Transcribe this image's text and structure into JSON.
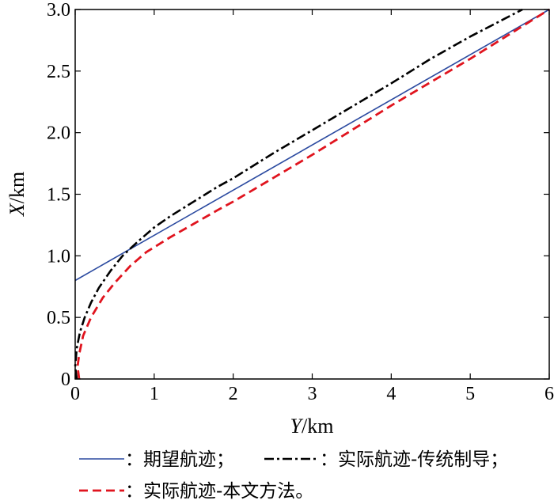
{
  "chart_data": {
    "type": "line",
    "xlabel": {
      "var": "Y",
      "unit": "/km"
    },
    "ylabel": {
      "var": "X",
      "unit": "/km"
    },
    "xlim": [
      0,
      6
    ],
    "ylim": [
      0,
      3.0
    ],
    "x_ticks": [
      {
        "value": 0,
        "label": "0"
      },
      {
        "value": 1,
        "label": "1"
      },
      {
        "value": 2,
        "label": "2"
      },
      {
        "value": 3,
        "label": "3"
      },
      {
        "value": 4,
        "label": "4"
      },
      {
        "value": 5,
        "label": "5"
      },
      {
        "value": 6,
        "label": "6"
      }
    ],
    "y_ticks": [
      {
        "value": 0,
        "label": "0"
      },
      {
        "value": 0.5,
        "label": "0.5"
      },
      {
        "value": 1.0,
        "label": "1.0"
      },
      {
        "value": 1.5,
        "label": "1.5"
      },
      {
        "value": 2.0,
        "label": "2.0"
      },
      {
        "value": 2.5,
        "label": "2.5"
      },
      {
        "value": 3.0,
        "label": "3.0"
      }
    ],
    "grid": false,
    "legend_position": "bottom",
    "series": [
      {
        "name": "期望航迹",
        "legend_text": "：期望航迹；",
        "color": "#2b4aa0",
        "style": "solid",
        "x": [
          0,
          6
        ],
        "y": [
          0.8,
          3.0
        ]
      },
      {
        "name": "实际航迹-传统制导",
        "legend_text": "：实际航迹-传统制导；",
        "color": "#000000",
        "style": "dashdot",
        "x": [
          0.02,
          0.0,
          0.02,
          0.06,
          0.12,
          0.2,
          0.3,
          0.45,
          0.6,
          0.8,
          1.0,
          1.2,
          1.5,
          1.8,
          2.0,
          2.5,
          3.0,
          3.5,
          4.0,
          4.5,
          5.0,
          5.66
        ],
        "y": [
          0.0,
          0.1,
          0.25,
          0.38,
          0.5,
          0.62,
          0.74,
          0.88,
          1.0,
          1.12,
          1.23,
          1.32,
          1.44,
          1.56,
          1.63,
          1.83,
          2.02,
          2.21,
          2.4,
          2.6,
          2.78,
          3.0
        ]
      },
      {
        "name": "实际航迹-本文方法",
        "legend_text": "：实际航迹-本文方法。",
        "color": "#e0141e",
        "style": "dashed",
        "x": [
          0.05,
          0.03,
          0.05,
          0.1,
          0.2,
          0.35,
          0.5,
          0.7,
          0.9,
          1.2,
          1.5,
          1.8,
          2.0,
          2.5,
          3.0,
          3.5,
          4.0,
          4.5,
          5.0,
          5.5,
          6.0
        ],
        "y": [
          0.0,
          0.1,
          0.2,
          0.35,
          0.5,
          0.66,
          0.78,
          0.92,
          1.03,
          1.15,
          1.26,
          1.37,
          1.44,
          1.63,
          1.82,
          2.02,
          2.22,
          2.41,
          2.6,
          2.8,
          3.0
        ]
      }
    ]
  }
}
